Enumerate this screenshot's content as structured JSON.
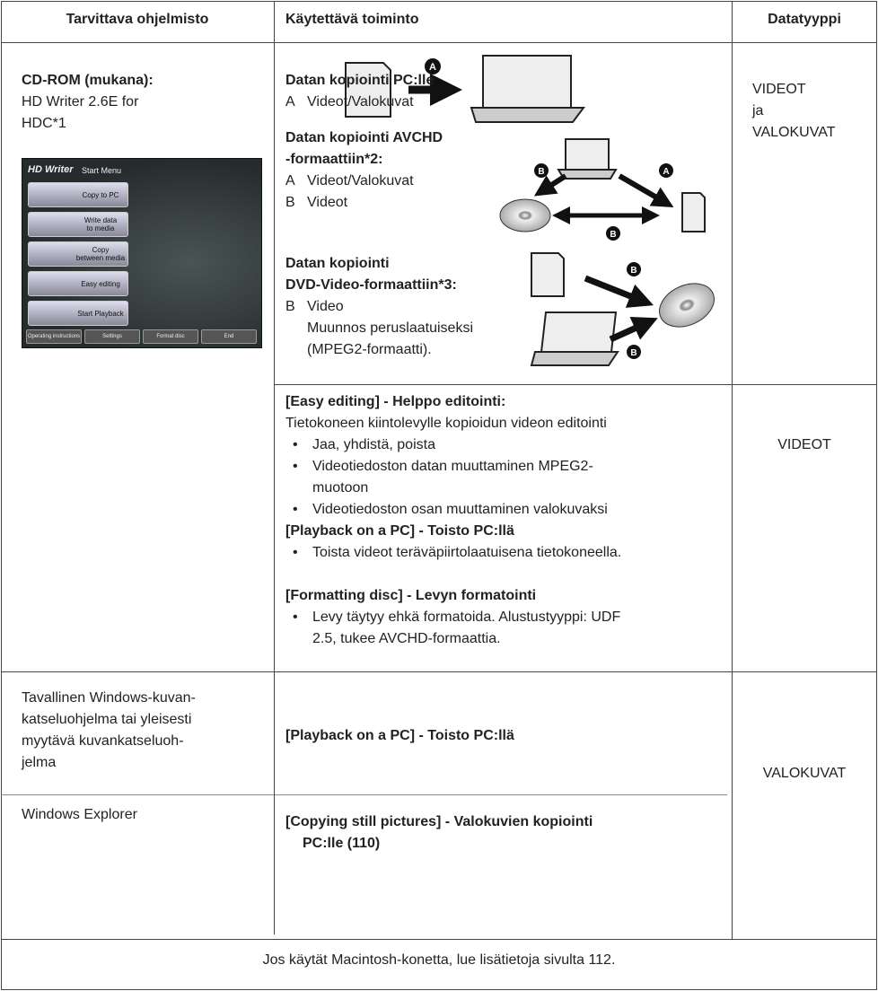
{
  "header": {
    "software": "Tarvittava ohjelmisto",
    "function": "Käytettävä toiminto",
    "datatype": "Datatyyppi"
  },
  "cdrom": {
    "title": "CD-ROM (mukana):",
    "text": [
      "HD Writer 2.6E for",
      "HDC*1"
    ],
    "screenshot": {
      "title": "HD Writer",
      "subtitle": "Start Menu",
      "buttons": [
        [
          "Copy to PC"
        ],
        [
          "Write data",
          "to media"
        ],
        [
          "Copy",
          "between media"
        ],
        [
          "Easy editing"
        ],
        [
          "Start Playback"
        ]
      ],
      "footer_buttons": [
        "Operating instructions",
        "Settings",
        "Format disc",
        "End"
      ]
    }
  },
  "copy_functions": [
    {
      "title": [
        "Datan kopiointi PC:lle"
      ],
      "items": [
        {
          "letter": "A",
          "text": "Videot/Valokuvat"
        }
      ]
    },
    {
      "title": [
        "Datan kopiointi AVCHD",
        "-formaattiin*2:"
      ],
      "items": [
        {
          "letter": "A",
          "text": "Videot/Valokuvat"
        },
        {
          "letter": "B",
          "text": "Videot"
        }
      ]
    },
    {
      "title": [
        "Datan kopiointi",
        "DVD-Video-formaattiin*3:"
      ],
      "items": [
        {
          "letter": "B",
          "text": "Video"
        }
      ],
      "note": [
        "Muunnos peruslaatuiseksi",
        "(MPEG2-formaatti)."
      ]
    }
  ],
  "badges": [
    "A",
    "B"
  ],
  "datatype_1": [
    "VIDEOT",
    "ja",
    "VALOKUVAT"
  ],
  "editing": {
    "title": "[Easy editing] - Helppo editointi:",
    "text": "Tietokoneen kiintolevylle kopioidun videon editointi",
    "bullets": [
      [
        "Jaa, yhdistä, poista"
      ],
      [
        "Videotiedoston datan muuttaminen MPEG2-",
        "muotoon"
      ],
      [
        "Videotiedoston osan muuttaminen valokuvaksi"
      ]
    ]
  },
  "playback": {
    "title": "[Playback on a PC] - Toisto PC:llä",
    "bullets": [
      [
        "Toista videot teräväpiirtolaatuisena tietokoneella."
      ]
    ]
  },
  "formatting": {
    "title": "[Formatting disc] - Levyn formatointi",
    "bullets": [
      [
        "Levy täytyy ehkä formatoida. Alustustyyppi: UDF",
        "2.5, tukee AVCHD-formaattia."
      ]
    ]
  },
  "datatype_2": "VIDEOT",
  "viewer": {
    "software": [
      "Tavallinen Windows-kuvan-",
      "katseluohjelma tai yleisesti",
      "myytävä kuvankatseluoh-",
      "jelma"
    ],
    "function": "[Playback on a PC] - Toisto PC:llä"
  },
  "explorer": {
    "software": "Windows Explorer",
    "function": [
      "[Copying still pictures]  - Valokuvien kopiointi",
      "PC:lle (110)"
    ]
  },
  "datatype_3": "VALOKUVAT",
  "footer": "Jos käytät Macintosh-konetta, lue lisätietoja sivulta 112."
}
